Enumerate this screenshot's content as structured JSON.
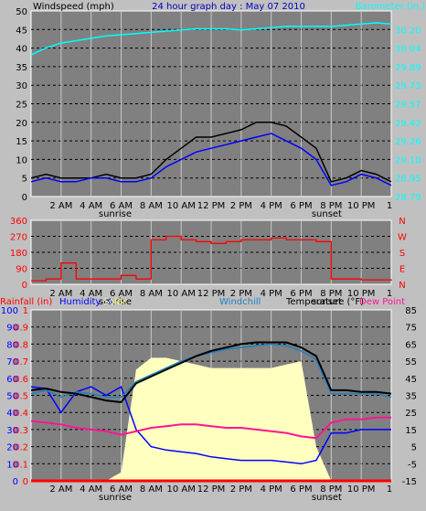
{
  "panels": {
    "top": {
      "title_left": "Windspeed (mph)",
      "title_center": "24 hour graph day : May 07 2010",
      "title_right": "Barometer (in.)"
    },
    "middle": {
      "direction_letters": [
        "N",
        "W",
        "S",
        "E",
        "N"
      ]
    },
    "bottom": {
      "legend": [
        {
          "label": "Rainfall (in)",
          "color": "#ff0000"
        },
        {
          "label": "Humidity %",
          "color": "#0000ff"
        },
        {
          "label": "Solar",
          "color": "#ffff80"
        },
        {
          "label": "Windchill",
          "color": "#1e7fc0"
        },
        {
          "label": "Temperature (°F)",
          "color": "#000000"
        },
        {
          "label": "Dew Point",
          "color": "#ff1493"
        }
      ]
    }
  },
  "x_axis": {
    "tick_labels": [
      "2 AM",
      "4 AM",
      "6 AM",
      "8 AM",
      "10 AM",
      "12 PM",
      "2 PM",
      "4 PM",
      "6 PM",
      "8 PM",
      "10 PM"
    ],
    "end_label": "1",
    "sunrise_label": "sunrise",
    "sunset_label": "sunset"
  },
  "colors": {
    "background": "#c0c0c0",
    "plot_bg": "#808080",
    "wind": "#000000",
    "wind_avg": "#0000ff",
    "gust_gray": "#808080",
    "barometer": "#00ffff",
    "direction": "#ff0000",
    "solar": "#ffffc0",
    "humidity": "#0000ff",
    "windchill": "#1e7fc0",
    "temperature": "#000000",
    "dewpoint": "#ff1493",
    "rainfall": "#ff0000"
  },
  "chart_data": [
    {
      "type": "line",
      "title": "24 hour graph day : May 07 2010",
      "ylabel": "Windspeed (mph)",
      "y2label": "Barometer (in.)",
      "ylim": [
        0,
        50
      ],
      "y_ticks": [
        0,
        5,
        10,
        15,
        20,
        25,
        30,
        35,
        40,
        45,
        50
      ],
      "y2lim": [
        28.79,
        30.35
      ],
      "y2_ticks": [
        "28.79",
        "28.95",
        "29.10",
        "29.26",
        "29.42",
        "29.57",
        "29.73",
        "29.89",
        "30.04",
        "30.20"
      ],
      "x_hours": [
        0,
        1,
        2,
        3,
        4,
        5,
        6,
        7,
        8,
        9,
        10,
        11,
        12,
        13,
        14,
        15,
        16,
        17,
        18,
        19,
        20,
        21,
        22,
        23,
        24
      ],
      "series": [
        {
          "name": "Windspeed",
          "values": [
            5,
            6,
            5,
            5,
            5,
            6,
            5,
            5,
            6,
            10,
            13,
            16,
            16,
            17,
            18,
            20,
            20,
            19,
            16,
            13,
            4,
            5,
            7,
            6,
            4
          ]
        },
        {
          "name": "Windspeed avg",
          "values": [
            4,
            5,
            4,
            4,
            5,
            5,
            4,
            4,
            5,
            8,
            10,
            12,
            13,
            14,
            15,
            16,
            17,
            15,
            13,
            10,
            3,
            4,
            6,
            5,
            3
          ]
        },
        {
          "name": "Barometer",
          "values": [
            29.98,
            30.04,
            30.08,
            30.1,
            30.12,
            30.14,
            30.15,
            30.16,
            30.17,
            30.18,
            30.19,
            30.2,
            30.2,
            30.2,
            30.19,
            30.2,
            30.21,
            30.22,
            30.22,
            30.22,
            30.22,
            30.23,
            30.24,
            30.25,
            30.24
          ]
        }
      ]
    },
    {
      "type": "line",
      "ylabel": "",
      "ylim": [
        0,
        360
      ],
      "y_ticks": [
        0,
        90,
        180,
        270,
        360
      ],
      "x_hours": [
        0,
        1,
        2,
        3,
        4,
        5,
        6,
        7,
        8,
        9,
        10,
        11,
        12,
        13,
        14,
        15,
        16,
        17,
        18,
        19,
        20,
        21,
        22,
        23,
        24
      ],
      "series": [
        {
          "name": "Wind direction",
          "values": [
            20,
            30,
            120,
            30,
            30,
            30,
            50,
            30,
            250,
            270,
            250,
            240,
            230,
            240,
            250,
            250,
            260,
            250,
            250,
            240,
            30,
            30,
            25,
            25,
            20
          ]
        }
      ]
    },
    {
      "type": "line",
      "ylabel": "",
      "ylim_left": [
        0,
        100
      ],
      "y_ticks_left": [
        0,
        10,
        20,
        30,
        40,
        50,
        60,
        70,
        80,
        90,
        100
      ],
      "y_ticks_rain": [
        "0",
        "0.1",
        "0.2",
        "0.3",
        "0.4",
        "0.5",
        "0.6",
        "0.7",
        "0.8",
        "0.9",
        "1"
      ],
      "ylim_right": [
        -15,
        85
      ],
      "y_ticks_right": [
        -15,
        -5,
        5,
        15,
        25,
        35,
        45,
        55,
        65,
        75,
        85
      ],
      "x_hours": [
        0,
        1,
        2,
        3,
        4,
        5,
        6,
        7,
        8,
        9,
        10,
        11,
        12,
        13,
        14,
        15,
        16,
        17,
        18,
        19,
        20,
        21,
        22,
        23,
        24
      ],
      "series": [
        {
          "name": "Humidity",
          "values": [
            55,
            54,
            40,
            52,
            55,
            50,
            55,
            30,
            20,
            18,
            17,
            16,
            14,
            13,
            12,
            12,
            12,
            11,
            10,
            12,
            28,
            28,
            30,
            30,
            30
          ]
        },
        {
          "name": "Solar",
          "values": [
            0,
            0,
            0,
            0,
            0,
            0,
            5,
            65,
            72,
            72,
            70,
            68,
            66,
            66,
            66,
            66,
            66,
            68,
            70,
            20,
            0,
            0,
            0,
            0,
            0
          ]
        },
        {
          "name": "Windchill",
          "values": [
            36,
            38,
            34,
            37,
            36,
            34,
            34,
            43,
            47,
            51,
            55,
            58,
            60,
            62,
            63,
            64,
            65,
            64,
            61,
            56,
            36,
            36,
            36,
            36,
            34
          ]
        },
        {
          "name": "Temperature",
          "values": [
            38,
            39,
            37,
            36,
            34,
            32,
            31,
            42,
            46,
            50,
            54,
            58,
            61,
            63,
            65,
            66,
            66,
            66,
            63,
            58,
            38,
            38,
            37,
            37,
            36
          ]
        },
        {
          "name": "Dew Point",
          "values": [
            20,
            19,
            18,
            16,
            15,
            14,
            12,
            14,
            16,
            17,
            18,
            18,
            17,
            16,
            16,
            15,
            14,
            13,
            11,
            10,
            19,
            21,
            21,
            22,
            22
          ]
        },
        {
          "name": "Rainfall",
          "values": [
            0,
            0,
            0,
            0,
            0,
            0,
            0,
            0,
            0,
            0,
            0,
            0,
            0,
            0,
            0,
            0,
            0,
            0,
            0,
            0,
            0,
            0,
            0,
            0,
            0
          ]
        }
      ]
    }
  ]
}
